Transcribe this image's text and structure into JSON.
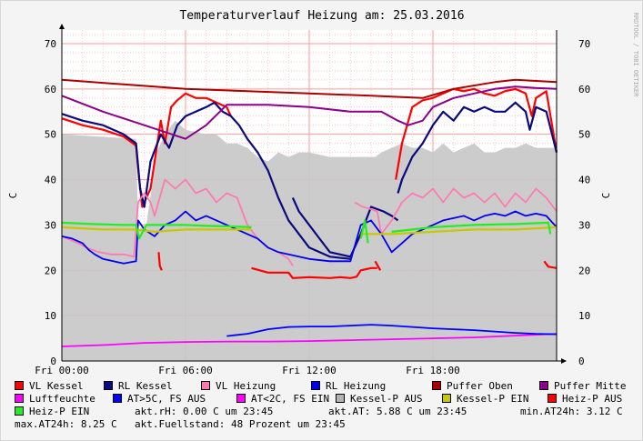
{
  "chart_data": {
    "type": "line",
    "title": "Temperaturverlauf Heizung am: 25.03.2016",
    "ylabel_left": "C",
    "ylabel_right": "C",
    "watermark": "RRDTOOL / TOBI OETIKER",
    "ylim": [
      0,
      73
    ],
    "y_ticks": [
      "0",
      "10",
      "20",
      "30",
      "40",
      "50",
      "60",
      "70"
    ],
    "x_hours_range": [
      0,
      24
    ],
    "x_ticks": [
      {
        "hour": 0,
        "label": "Fri 00:00"
      },
      {
        "hour": 6,
        "label": "Fri 06:00"
      },
      {
        "hour": 12,
        "label": "Fri 12:00"
      },
      {
        "hour": 18,
        "label": "Fri 18:00"
      }
    ],
    "area_series": {
      "name": "Kessel-P AUS",
      "color": "#c8c8c8",
      "x": [
        0,
        3.6,
        3.7,
        4.1,
        4.6,
        5.0,
        5.5,
        6.0,
        7.0,
        7.5,
        8.0,
        8.5,
        9.0,
        9.5,
        10.0,
        10.5,
        11.0,
        11.5,
        12.0,
        13.0,
        14.0,
        15.0,
        15.2,
        15.5,
        16.0,
        16.5,
        17.0,
        17.5,
        18.0,
        18.5,
        19.0,
        19.5,
        20.0,
        20.5,
        21.0,
        21.5,
        22.0,
        22.5,
        23.0,
        23.5,
        24.0
      ],
      "y": [
        50,
        49,
        29,
        30,
        46,
        50,
        53,
        51,
        50,
        50,
        48,
        48,
        47,
        45,
        44,
        46,
        45,
        46,
        46,
        45,
        45,
        45,
        45,
        46,
        47,
        48,
        47,
        47,
        46,
        48,
        46,
        47,
        48,
        46,
        46,
        47,
        47,
        48,
        47,
        47,
        47
      ]
    },
    "series": [
      {
        "name": "VL Kessel",
        "color": "#ff0000",
        "width": 2.2,
        "segments": [
          {
            "x": [
              0,
              1,
              2,
              3,
              3.6,
              3.75,
              3.9,
              4.3,
              4.8,
              5.0,
              5.3,
              5.6,
              6.0,
              6.5,
              7.0,
              7.5,
              8.0,
              8.2
            ],
            "y": [
              53.5,
              52,
              51,
              49.5,
              47.5,
              40,
              34,
              38,
              53,
              48,
              56,
              57.5,
              59,
              58,
              58,
              57,
              56,
              54
            ]
          },
          {
            "x": [
              4.7,
              4.75,
              4.85
            ],
            "y": [
              24,
              21,
              20
            ]
          },
          {
            "x": [
              9.2,
              10.0,
              11.0,
              11.2,
              12.0,
              13.0,
              13.5,
              14.0,
              14.3,
              14.5,
              15.0,
              15.3
            ],
            "y": [
              20.5,
              19.5,
              19.5,
              18.3,
              18.5,
              18.3,
              18.5,
              18.3,
              18.6,
              20,
              20.5,
              20.5
            ]
          },
          {
            "x": [
              15.2,
              15.45
            ],
            "y": [
              22,
              20
            ]
          },
          {
            "x": [
              16.2,
              16.5,
              17.0,
              17.5,
              18.0,
              18.5,
              19.0,
              19.5,
              20.0,
              20.5,
              21.0,
              21.5,
              22.0,
              22.5,
              22.8,
              23.0,
              23.5,
              24.0
            ],
            "y": [
              40,
              48,
              56,
              57.5,
              58,
              59,
              60,
              59.5,
              60,
              59,
              58.5,
              59.5,
              60,
              59,
              54,
              58,
              59.5,
              46
            ]
          },
          {
            "x": [
              23.4,
              23.6,
              24.0
            ],
            "y": [
              22,
              20.8,
              20.5
            ]
          }
        ]
      },
      {
        "name": "RL Kessel",
        "color": "#0a0a80",
        "width": 2.2,
        "segments": [
          {
            "x": [
              0,
              1,
              2,
              3,
              3.6,
              3.8,
              4.0,
              4.3,
              4.8,
              5.2,
              5.6,
              6.0,
              6.5,
              7.0,
              7.4,
              7.8,
              8.2,
              8.6,
              9.0,
              9.5,
              10.0,
              10.5,
              11.0,
              11.5,
              12.0,
              13.0,
              14.0
            ],
            "y": [
              54.5,
              53,
              52,
              50,
              48,
              38,
              34,
              44,
              50,
              47,
              52,
              54,
              55,
              56,
              57,
              55,
              54,
              52,
              49,
              46,
              42,
              36,
              31,
              28,
              25,
              23,
              22.5
            ]
          },
          {
            "x": [
              11.2,
              11.5,
              12.0,
              12.5,
              13.0,
              14.0,
              14.5,
              15.0,
              15.6,
              16.0,
              16.3
            ],
            "y": [
              36,
              33,
              30,
              27,
              24,
              23,
              28,
              34,
              33,
              32,
              31
            ]
          },
          {
            "x": [
              16.3,
              16.5,
              17.0,
              17.5,
              18.0,
              18.5,
              19.0,
              19.5,
              20.0,
              20.5,
              21.0,
              21.5,
              22.0,
              22.5,
              22.7,
              23.0,
              23.5,
              24.0
            ],
            "y": [
              37,
              40,
              45,
              48,
              52,
              55,
              53,
              56,
              55,
              56,
              55,
              55,
              57,
              55,
              51,
              56,
              55,
              46
            ]
          }
        ]
      },
      {
        "name": "VL Heizung",
        "color": "#ff7ab0",
        "width": 1.8,
        "segments": [
          {
            "x": [
              0,
              0.8,
              1.2,
              1.8,
              2.4,
              3.0,
              3.5,
              3.7,
              4.0,
              4.3,
              4.5,
              5.0,
              5.5,
              6.0,
              6.5,
              7.0,
              7.5,
              8.0,
              8.5,
              9.0,
              9.5,
              10.0,
              10.5,
              11.0,
              11.2
            ],
            "y": [
              27.5,
              26,
              25,
              24,
              23.5,
              23.5,
              23,
              35,
              37,
              35,
              32,
              40,
              38,
              40,
              37,
              38,
              35,
              37,
              36,
              30,
              27,
              25,
              24,
              22.5,
              21
            ]
          },
          {
            "x": [
              14.2,
              14.6,
              15.0,
              15.3,
              15.5,
              16.0,
              16.5,
              17.0,
              17.5,
              18.0,
              18.5,
              19.0,
              19.5,
              20.0,
              20.5,
              21.0,
              21.5,
              22.0,
              22.5,
              23.0,
              23.5,
              24.0
            ],
            "y": [
              35,
              34,
              33.5,
              33,
              28,
              31,
              35,
              37,
              36,
              38,
              35,
              38,
              36,
              37,
              35,
              37,
              34,
              37,
              35,
              38,
              36,
              33
            ]
          }
        ]
      },
      {
        "name": "RL Heizung",
        "color": "#0000ee",
        "width": 1.8,
        "segments": [
          {
            "x": [
              0,
              0.5,
              1.0,
              1.3,
              1.6,
              2.0,
              2.5,
              3.0,
              3.6,
              3.7,
              4.0,
              4.5,
              5.0,
              5.5,
              6.0,
              6.5,
              7.0,
              7.5,
              8.0,
              8.5,
              9.0,
              9.5,
              10.0,
              10.5,
              11.0,
              11.5,
              12.0,
              13.0,
              14.0,
              14.5,
              15.0,
              15.5,
              16.0,
              16.5,
              17.0,
              17.5,
              18.0,
              18.5,
              19.0,
              19.5,
              20.0,
              20.5,
              21.0,
              21.5,
              22.0,
              22.5,
              23.0,
              23.5,
              24.0
            ],
            "y": [
              27.5,
              27,
              26,
              24.5,
              23.5,
              22.5,
              22,
              21.5,
              22,
              31,
              29,
              27.5,
              30,
              31,
              33,
              31,
              32,
              31,
              30,
              29,
              28,
              27,
              25,
              24,
              23.5,
              23,
              22.5,
              22,
              22,
              30,
              31,
              28,
              24,
              26,
              28,
              29,
              30,
              31,
              31.5,
              32,
              31,
              32,
              32.5,
              32,
              33,
              32,
              32.5,
              32,
              29.5
            ]
          }
        ]
      },
      {
        "name": "Puffer Oben",
        "color": "#aa0000",
        "width": 2,
        "segments": [
          {
            "x": [
              0,
              3,
              6,
              9,
              12,
              15,
              17.5,
              19,
              21,
              22,
              24
            ],
            "y": [
              62,
              61,
              60,
              59.5,
              59,
              58.5,
              58,
              60,
              61.5,
              62,
              61.5
            ]
          }
        ]
      },
      {
        "name": "Puffer Mitte",
        "color": "#8a008a",
        "width": 2,
        "segments": [
          {
            "x": [
              0,
              2,
              4,
              6,
              7,
              8,
              10,
              12,
              14,
              15.5,
              16.3,
              16.8,
              17.5,
              18,
              19,
              20,
              21,
              22,
              23,
              24
            ],
            "y": [
              58.5,
              55,
              52,
              49,
              52,
              56.5,
              56.5,
              56,
              55,
              55,
              53,
              52,
              53,
              56,
              58,
              59,
              60,
              60.5,
              60.2,
              60
            ]
          }
        ]
      },
      {
        "name": "Luftfeuchte",
        "color": "#ff00ff",
        "width": 1.8,
        "segments": [
          {
            "x": [
              0,
              2,
              4,
              6,
              8,
              10,
              12,
              14,
              16,
              18,
              20,
              22,
              24
            ],
            "y": [
              3.2,
              3.5,
              4,
              4.2,
              4.3,
              4.3,
              4.4,
              4.6,
              4.8,
              5,
              5.2,
              5.6,
              6
            ]
          }
        ]
      },
      {
        "name": "AT>5C, FS AUS",
        "color": "#0000ff",
        "width": 1.8,
        "segments": [
          {
            "x": [
              8,
              9,
              10,
              11,
              12,
              13,
              14,
              15,
              16,
              17,
              18,
              19,
              20,
              21,
              22,
              23,
              24
            ],
            "y": [
              5.5,
              6,
              7,
              7.5,
              7.6,
              7.6,
              7.8,
              8.0,
              7.8,
              7.5,
              7.2,
              7.0,
              6.8,
              6.5,
              6.2,
              6.0,
              5.9
            ]
          }
        ]
      },
      {
        "name": "Kessel-P EIN",
        "color": "#c8c800",
        "width": 2.2,
        "segments": [
          {
            "x": [
              0,
              2,
              3.5,
              4.5,
              6,
              8,
              9.2
            ],
            "y": [
              29.5,
              29,
              29,
              28.5,
              29,
              29,
              29
            ]
          },
          {
            "x": [
              14.5,
              16,
              18,
              20,
              22,
              24
            ],
            "y": [
              28,
              28,
              28.5,
              29,
              29,
              29.5
            ]
          }
        ]
      },
      {
        "name": "Heiz-P EIN",
        "color": "#22ee22",
        "width": 2.2,
        "segments": [
          {
            "x": [
              0,
              1.5,
              3,
              3.6,
              3.75,
              4.1,
              4.6,
              5,
              6,
              7,
              8,
              9.2
            ],
            "y": [
              30.5,
              30.2,
              30,
              30,
              27,
              30,
              30,
              30,
              30,
              29.8,
              29.7,
              29.5
            ]
          },
          {
            "x": [
              14.5,
              14.7,
              14.85
            ],
            "y": [
              27,
              31,
              26
            ]
          },
          {
            "x": [
              16,
              18,
              20,
              22,
              23.6,
              23.7
            ],
            "y": [
              28.5,
              29.5,
              30,
              30.2,
              30.5,
              28
            ]
          }
        ]
      }
    ],
    "legend": [
      {
        "label": "VL Kessel",
        "color": "#ff0000"
      },
      {
        "label": "RL Kessel",
        "color": "#0a0a80"
      },
      {
        "label": "VL Heizung",
        "color": "#ff7ab0"
      },
      {
        "label": "RL Heizung",
        "color": "#0000ee"
      },
      {
        "label": "Puffer Oben",
        "color": "#aa0000"
      },
      {
        "label": "Puffer Mitte",
        "color": "#8a008a"
      },
      {
        "label": "Luftfeuchte",
        "color": "#ff00ff"
      },
      {
        "label": "AT>5C, FS AUS",
        "color": "#0000ff"
      },
      {
        "label": "AT<2C, FS EIN",
        "color": "#ff00ff"
      },
      {
        "label": "Kessel-P AUS",
        "color": "#b4b4b4"
      },
      {
        "label": "Kessel-P EIN",
        "color": "#c8c800"
      },
      {
        "label": "Heiz-P AUS",
        "color": "#ff0000"
      },
      {
        "label": "Heiz-P EIN",
        "color": "#22ee22"
      }
    ],
    "stats": {
      "akt_rh": "akt.rH: 0.00 C um 23:45",
      "akt_at": "akt.AT: 5.88 C um 23:45",
      "min_at": "min.AT24h: 3.12 C",
      "max_at": "max.AT24h: 8.25 C",
      "fuellstand": "akt.Fuellstand:   48 Prozent um 23:45"
    },
    "colors": {
      "page_bg": "#f4f4f4",
      "plot_bg": "#ffffff",
      "minor_grid": "#ffc8c8",
      "major_grid": "#ff9a9a",
      "axis": "#000000"
    }
  }
}
